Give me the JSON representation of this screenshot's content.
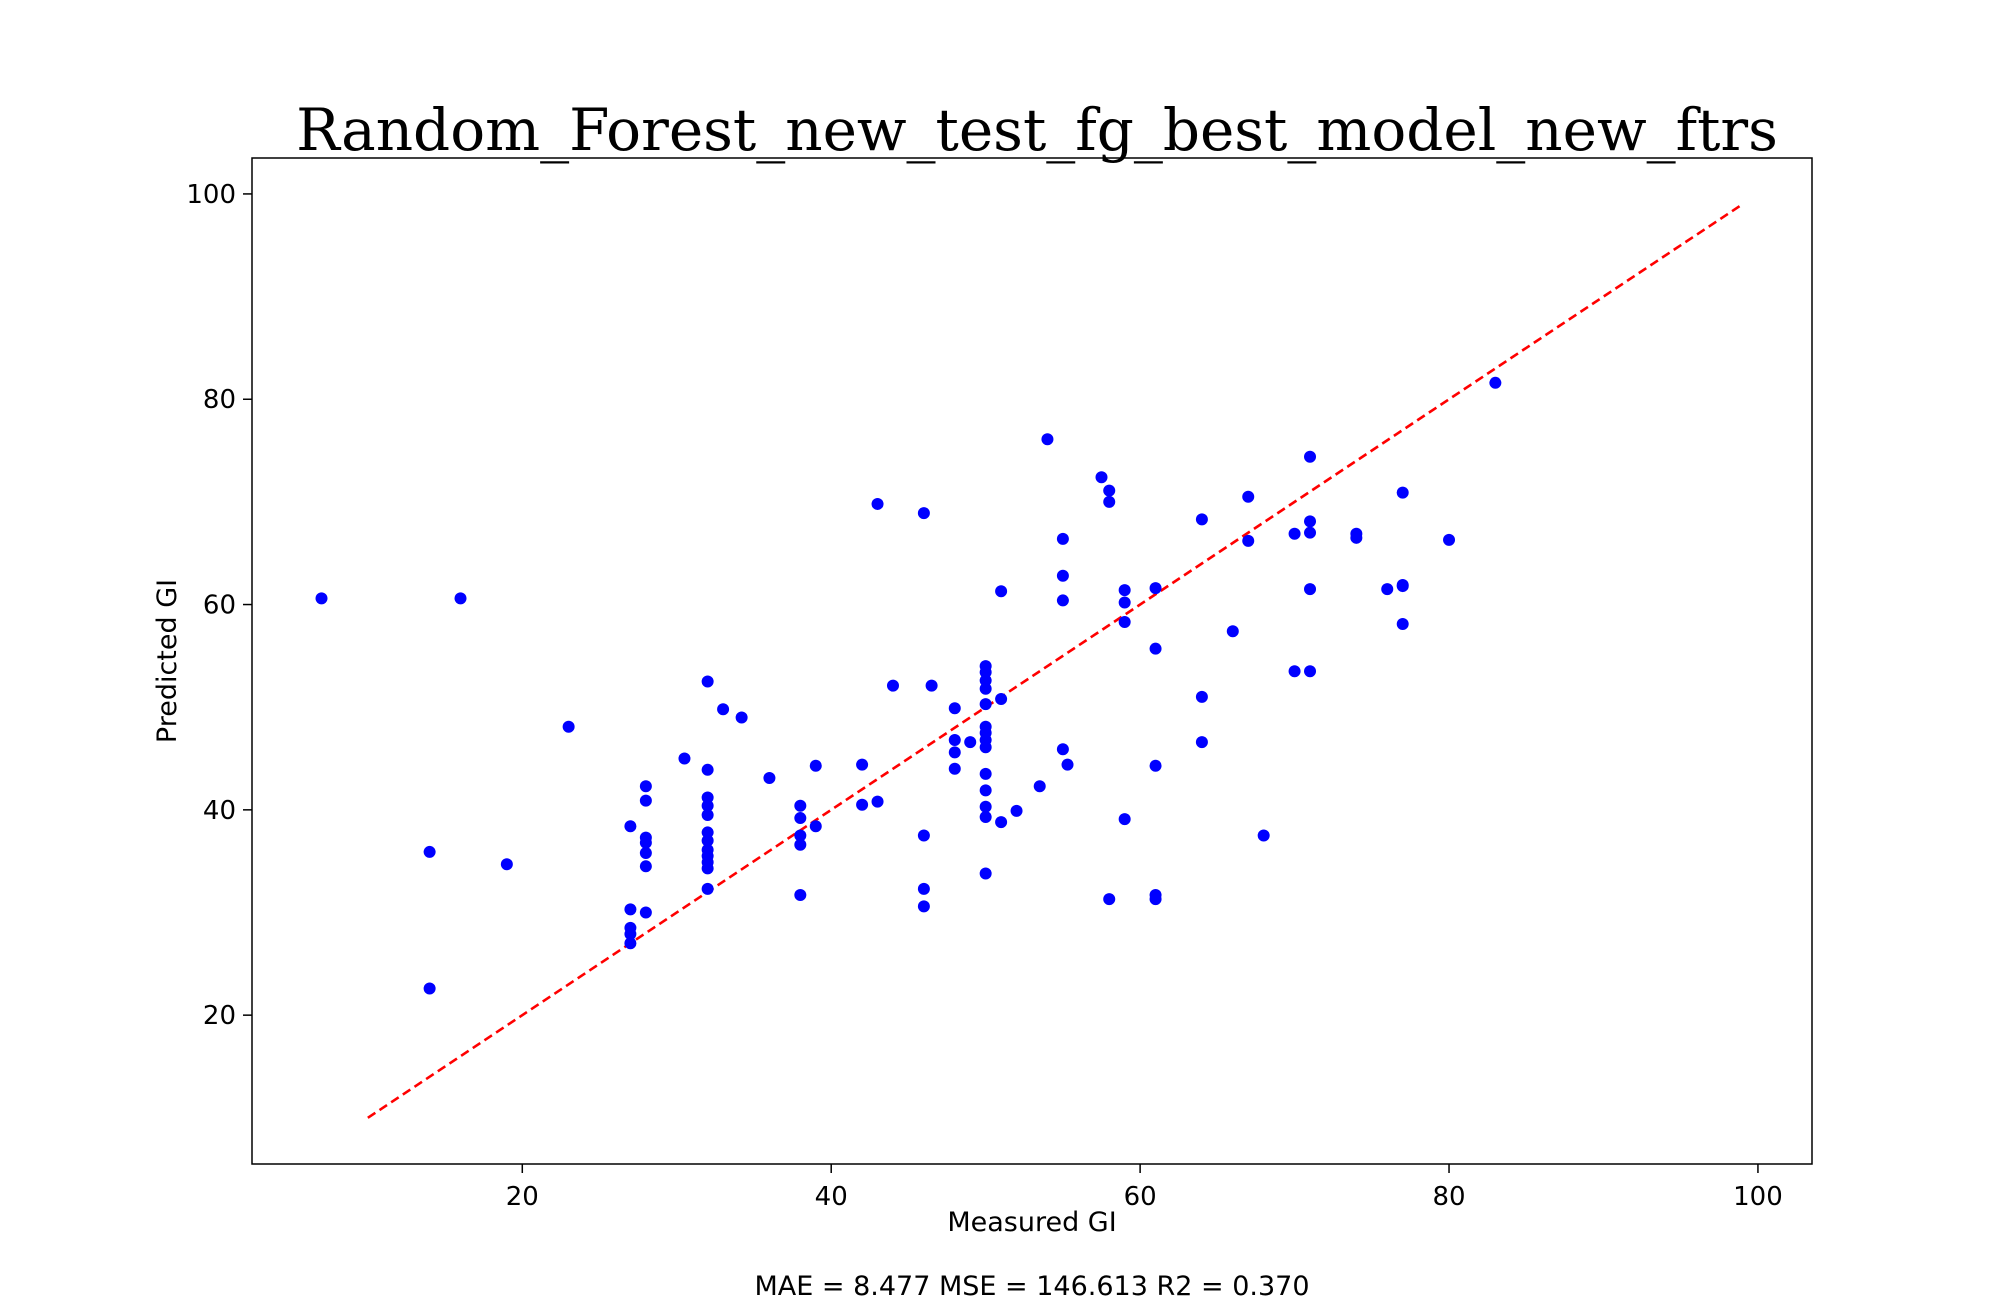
{
  "chart_data": {
    "type": "scatter",
    "title": "Random_Forest_new_test_fg_best_model_new_ftrs",
    "xlabel": "Measured GI",
    "ylabel": "Predicted GI",
    "xlim": [
      2.5,
      103.5
    ],
    "ylim": [
      5.5,
      103.5
    ],
    "xticks": [
      20,
      40,
      60,
      80,
      100
    ],
    "yticks": [
      20,
      40,
      60,
      80,
      100
    ],
    "grid": false,
    "point_color": "#0000ff",
    "reference_line": {
      "style": "dashed",
      "color": "#ff0000",
      "x": [
        10,
        99
      ],
      "y": [
        10,
        99
      ]
    },
    "points": [
      [
        7,
        60.6
      ],
      [
        14,
        35.9
      ],
      [
        14,
        22.6
      ],
      [
        16,
        60.6
      ],
      [
        19,
        34.7
      ],
      [
        23,
        48.1
      ],
      [
        27,
        38.4
      ],
      [
        27,
        30.3
      ],
      [
        27,
        28.5
      ],
      [
        27,
        27.9
      ],
      [
        27,
        27.0
      ],
      [
        28,
        42.3
      ],
      [
        28,
        40.9
      ],
      [
        28,
        37.3
      ],
      [
        28,
        36.8
      ],
      [
        28,
        35.8
      ],
      [
        28,
        34.5
      ],
      [
        28,
        30.0
      ],
      [
        30.5,
        45.0
      ],
      [
        32,
        52.5
      ],
      [
        32,
        43.9
      ],
      [
        32,
        41.2
      ],
      [
        32,
        40.4
      ],
      [
        32,
        39.5
      ],
      [
        32,
        37.8
      ],
      [
        32,
        37.0
      ],
      [
        32,
        36.1
      ],
      [
        32,
        35.5
      ],
      [
        32,
        34.9
      ],
      [
        32,
        34.3
      ],
      [
        32,
        32.3
      ],
      [
        33,
        49.8
      ],
      [
        34.2,
        49.0
      ],
      [
        36,
        43.1
      ],
      [
        38,
        40.4
      ],
      [
        38,
        39.2
      ],
      [
        38,
        37.5
      ],
      [
        38,
        36.6
      ],
      [
        38,
        31.7
      ],
      [
        39,
        44.3
      ],
      [
        39,
        38.4
      ],
      [
        42,
        44.4
      ],
      [
        42,
        40.5
      ],
      [
        43,
        40.8
      ],
      [
        43,
        69.8
      ],
      [
        44,
        52.1
      ],
      [
        46,
        68.9
      ],
      [
        46,
        37.5
      ],
      [
        46,
        32.3
      ],
      [
        46,
        30.6
      ],
      [
        46.5,
        52.1
      ],
      [
        48,
        49.9
      ],
      [
        48,
        46.8
      ],
      [
        48,
        45.6
      ],
      [
        48,
        44.0
      ],
      [
        49,
        46.6
      ],
      [
        50,
        54.0
      ],
      [
        50,
        53.4
      ],
      [
        50,
        52.6
      ],
      [
        50,
        51.8
      ],
      [
        50,
        50.3
      ],
      [
        50,
        48.1
      ],
      [
        50,
        47.5
      ],
      [
        50,
        46.8
      ],
      [
        50,
        46.1
      ],
      [
        50,
        43.5
      ],
      [
        50,
        41.9
      ],
      [
        50,
        40.3
      ],
      [
        50,
        39.3
      ],
      [
        50,
        33.8
      ],
      [
        51,
        61.3
      ],
      [
        51,
        50.8
      ],
      [
        51,
        38.8
      ],
      [
        52,
        39.9
      ],
      [
        53.5,
        42.3
      ],
      [
        54,
        76.1
      ],
      [
        55,
        66.4
      ],
      [
        55,
        62.8
      ],
      [
        55,
        60.4
      ],
      [
        55,
        45.9
      ],
      [
        55.3,
        44.4
      ],
      [
        57.5,
        72.4
      ],
      [
        58,
        71.1
      ],
      [
        58,
        70.0
      ],
      [
        58,
        31.3
      ],
      [
        59,
        61.4
      ],
      [
        59,
        60.2
      ],
      [
        59,
        58.3
      ],
      [
        59,
        39.1
      ],
      [
        61,
        61.6
      ],
      [
        61,
        55.7
      ],
      [
        61,
        44.3
      ],
      [
        61,
        31.7
      ],
      [
        61,
        31.3
      ],
      [
        64,
        68.3
      ],
      [
        64,
        51.0
      ],
      [
        64,
        46.6
      ],
      [
        66,
        57.4
      ],
      [
        67,
        70.5
      ],
      [
        67,
        66.2
      ],
      [
        68,
        37.5
      ],
      [
        70,
        66.9
      ],
      [
        70,
        53.5
      ],
      [
        71,
        74.4
      ],
      [
        71,
        68.1
      ],
      [
        71,
        67.0
      ],
      [
        71,
        61.5
      ],
      [
        71,
        53.5
      ],
      [
        74,
        66.9
      ],
      [
        74,
        66.5
      ],
      [
        76,
        61.5
      ],
      [
        77,
        70.9
      ],
      [
        77,
        61.9
      ],
      [
        77,
        61.8
      ],
      [
        77,
        58.1
      ],
      [
        80,
        66.3
      ],
      [
        83,
        81.6
      ]
    ]
  },
  "footer": {
    "metrics": "MAE = 8.477 MSE = 146.613 R2 = 0.370"
  }
}
